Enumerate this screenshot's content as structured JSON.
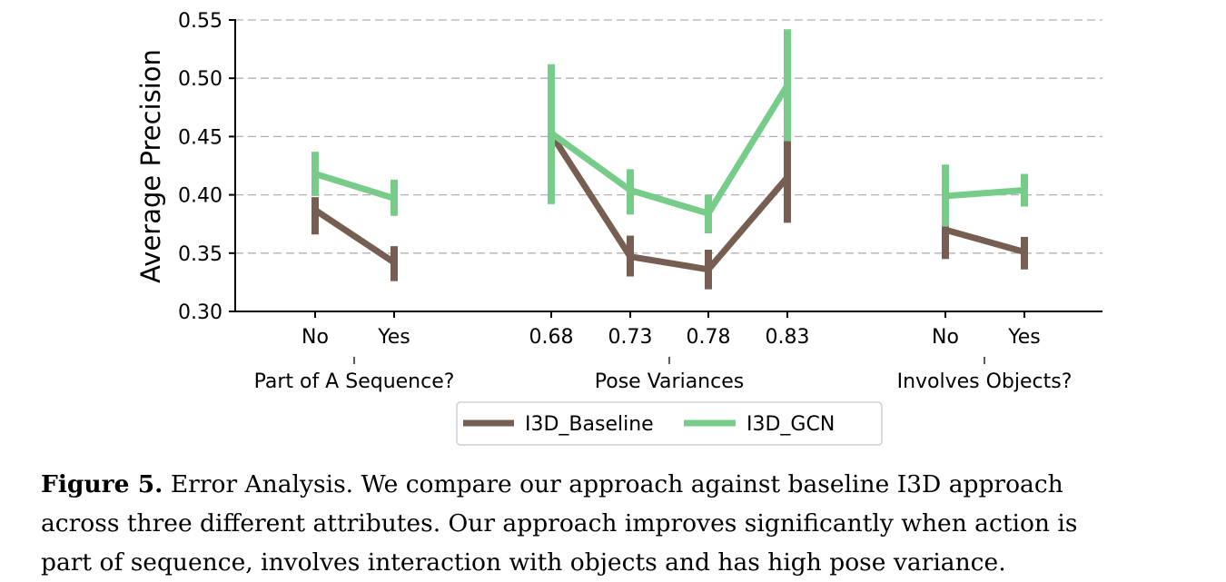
{
  "chart_data": {
    "type": "line",
    "title": "",
    "ylabel": "Average Precision",
    "ylim": [
      0.3,
      0.55
    ],
    "yticks": [
      "0.30",
      "0.35",
      "0.40",
      "0.45",
      "0.50",
      "0.55"
    ],
    "grid": "horizontal dashed",
    "groups": [
      {
        "label": "Part of A Sequence?",
        "categories": [
          "No",
          "Yes"
        ]
      },
      {
        "label": "Pose Variances",
        "categories": [
          "0.68",
          "0.73",
          "0.78",
          "0.83"
        ]
      },
      {
        "label": "Involves Objects?",
        "categories": [
          "No",
          "Yes"
        ]
      }
    ],
    "legend_position": "bottom-center",
    "series": [
      {
        "name": "I3D_Baseline",
        "color": "#765f52",
        "groups": [
          {
            "values": [
              0.387,
              0.342
            ],
            "err_low": [
              0.366,
              0.326
            ],
            "err_high": [
              0.398,
              0.356
            ]
          },
          {
            "values": [
              0.452,
              0.347,
              0.336,
              0.415
            ],
            "err_low": [
              0.394,
              0.33,
              0.319,
              0.376
            ],
            "err_high": [
              0.452,
              0.365,
              0.353,
              0.446
            ]
          },
          {
            "values": [
              0.37,
              0.351
            ],
            "err_low": [
              0.345,
              0.336
            ],
            "err_high": [
              0.373,
              0.364
            ]
          }
        ]
      },
      {
        "name": "I3D_GCN",
        "color": "#78cc8a",
        "groups": [
          {
            "values": [
              0.418,
              0.397
            ],
            "err_low": [
              0.399,
              0.382
            ],
            "err_high": [
              0.437,
              0.413
            ]
          },
          {
            "values": [
              0.453,
              0.404,
              0.384,
              0.494
            ],
            "err_low": [
              0.392,
              0.383,
              0.367,
              0.446
            ],
            "err_high": [
              0.512,
              0.422,
              0.4,
              0.542
            ]
          },
          {
            "values": [
              0.399,
              0.404
            ],
            "err_low": [
              0.373,
              0.39
            ],
            "err_high": [
              0.426,
              0.418
            ]
          }
        ]
      }
    ]
  },
  "caption": {
    "figure_label": "Figure 5.",
    "lines": [
      " Error Analysis. We compare our approach against baseline I3D approach",
      "across three different attributes. Our approach improves significantly when action is",
      "part of sequence, involves interaction with objects and has high pose variance."
    ]
  }
}
